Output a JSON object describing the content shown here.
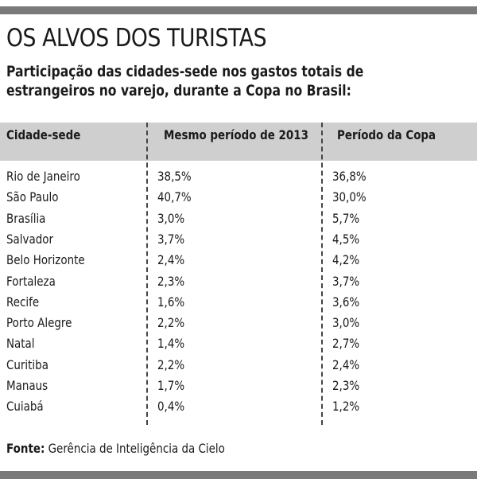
{
  "title": "OS ALVOS DOS TURISTAS",
  "subtitle": "Participação das cidades-sede nos gastos totais de estrangeiros no varejo, durante a Copa no Brasil:",
  "table": {
    "headers": [
      "Cidade-sede",
      "Mesmo período de 2013",
      "Período da Copa"
    ],
    "rows": [
      [
        "Rio de Janeiro",
        "38,5%",
        "36,8%"
      ],
      [
        "São Paulo",
        "40,7%",
        "30,0%"
      ],
      [
        "Brasília",
        "3,0%",
        "5,7%"
      ],
      [
        "Salvador",
        "3,7%",
        "4,5%"
      ],
      [
        "Belo Horizonte",
        "2,4%",
        "4,2%"
      ],
      [
        "Fortaleza",
        "2,3%",
        "3,7%"
      ],
      [
        "Recife",
        "1,6%",
        "3,6%"
      ],
      [
        "Porto Alegre",
        "2,2%",
        "3,0%"
      ],
      [
        "Natal",
        "1,4%",
        "2,7%"
      ],
      [
        "Curitiba",
        "2,2%",
        "2,4%"
      ],
      [
        "Manaus",
        "1,7%",
        "2,3%"
      ],
      [
        "Cuiabá",
        "0,4%",
        "1,2%"
      ]
    ]
  },
  "source": {
    "label": "Fonte:",
    "text": "Gerência de Inteligência da Cielo"
  }
}
